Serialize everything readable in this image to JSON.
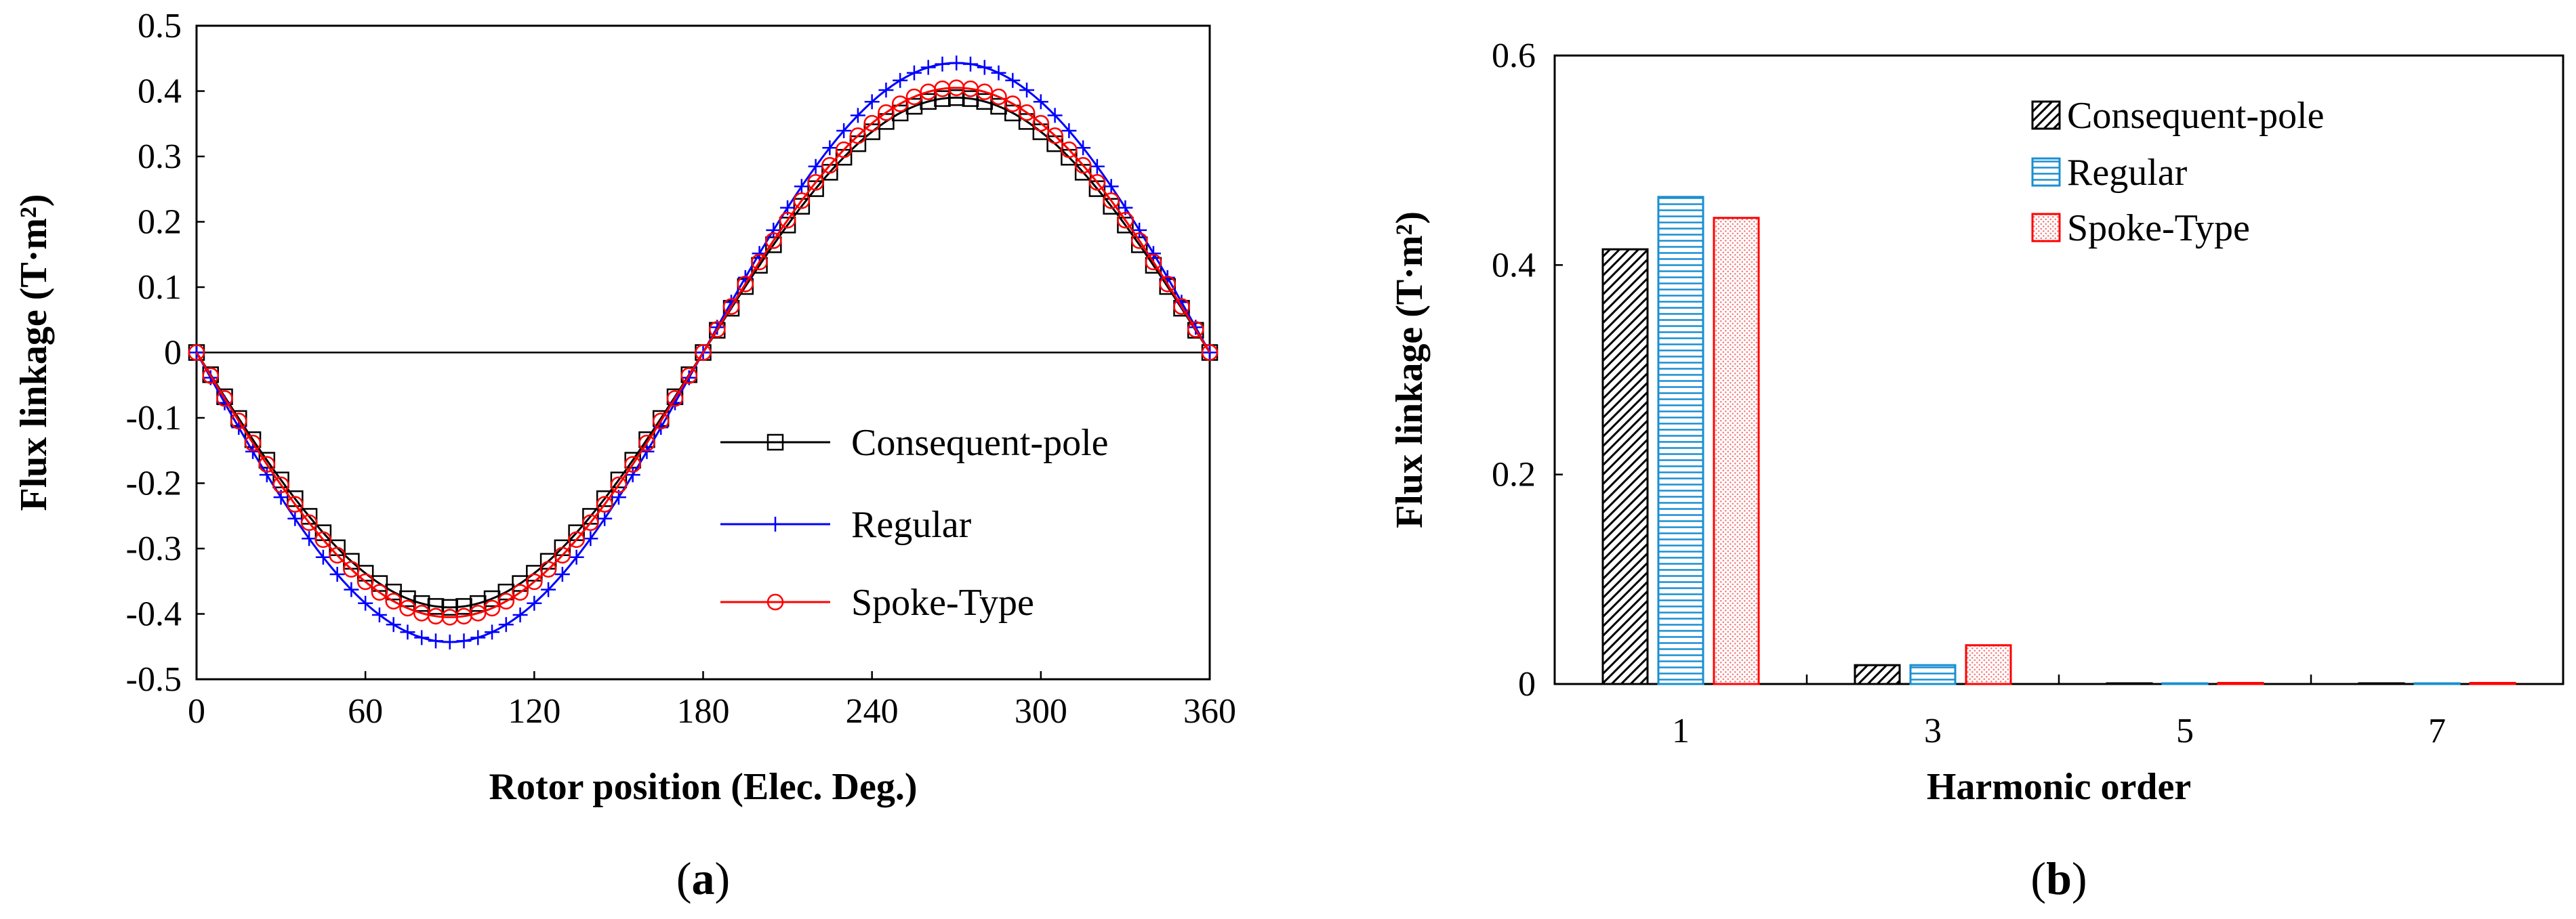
{
  "chart_data": [
    {
      "type": "line",
      "panel_label": "a",
      "xlabel": "Rotor position  (Elec. Deg.)",
      "ylabel": "Flux linkage (T·m²)",
      "xlim": [
        0,
        360
      ],
      "ylim": [
        -0.5,
        0.5
      ],
      "xticks": [
        0,
        60,
        120,
        180,
        240,
        300,
        360
      ],
      "yticks": [
        0.5,
        0.4,
        0.3,
        0.2,
        0.1,
        0,
        -0.1,
        -0.2,
        -0.3,
        -0.4,
        -0.5
      ],
      "x_step": 5,
      "series": [
        {
          "name": "Consequent-pole",
          "amplitude": 0.39,
          "color": "#000000",
          "marker": "square"
        },
        {
          "name": "Regular",
          "amplitude": 0.443,
          "color": "#0000ff",
          "marker": "plus"
        },
        {
          "name": "Spoke-Type",
          "amplitude": 0.405,
          "color": "#ff0000",
          "marker": "circle"
        }
      ],
      "legend": {
        "position": "bottom-right"
      }
    },
    {
      "type": "bar",
      "panel_label": "b",
      "xlabel": "Harmonic order",
      "ylabel": "Flux linkage (T·m²)",
      "ylim": [
        0,
        0.6
      ],
      "yticks": [
        "0.6",
        "0.4",
        "0.2",
        "0"
      ],
      "categories": [
        "1",
        "3",
        "5",
        "7"
      ],
      "series": [
        {
          "name": "Consequent-pole",
          "values": [
            0.415,
            0.018,
            0.0,
            0.0
          ],
          "color": "#000000",
          "pattern": "diagonal"
        },
        {
          "name": "Regular",
          "values": [
            0.465,
            0.018,
            0.0,
            0.0
          ],
          "color": "#1a8fd0",
          "pattern": "horizontal"
        },
        {
          "name": "Spoke-Type",
          "values": [
            0.445,
            0.037,
            0.001,
            0.001
          ],
          "color": "#ff0000",
          "pattern": "dots"
        }
      ],
      "legend": {
        "position": "top-right"
      }
    }
  ]
}
